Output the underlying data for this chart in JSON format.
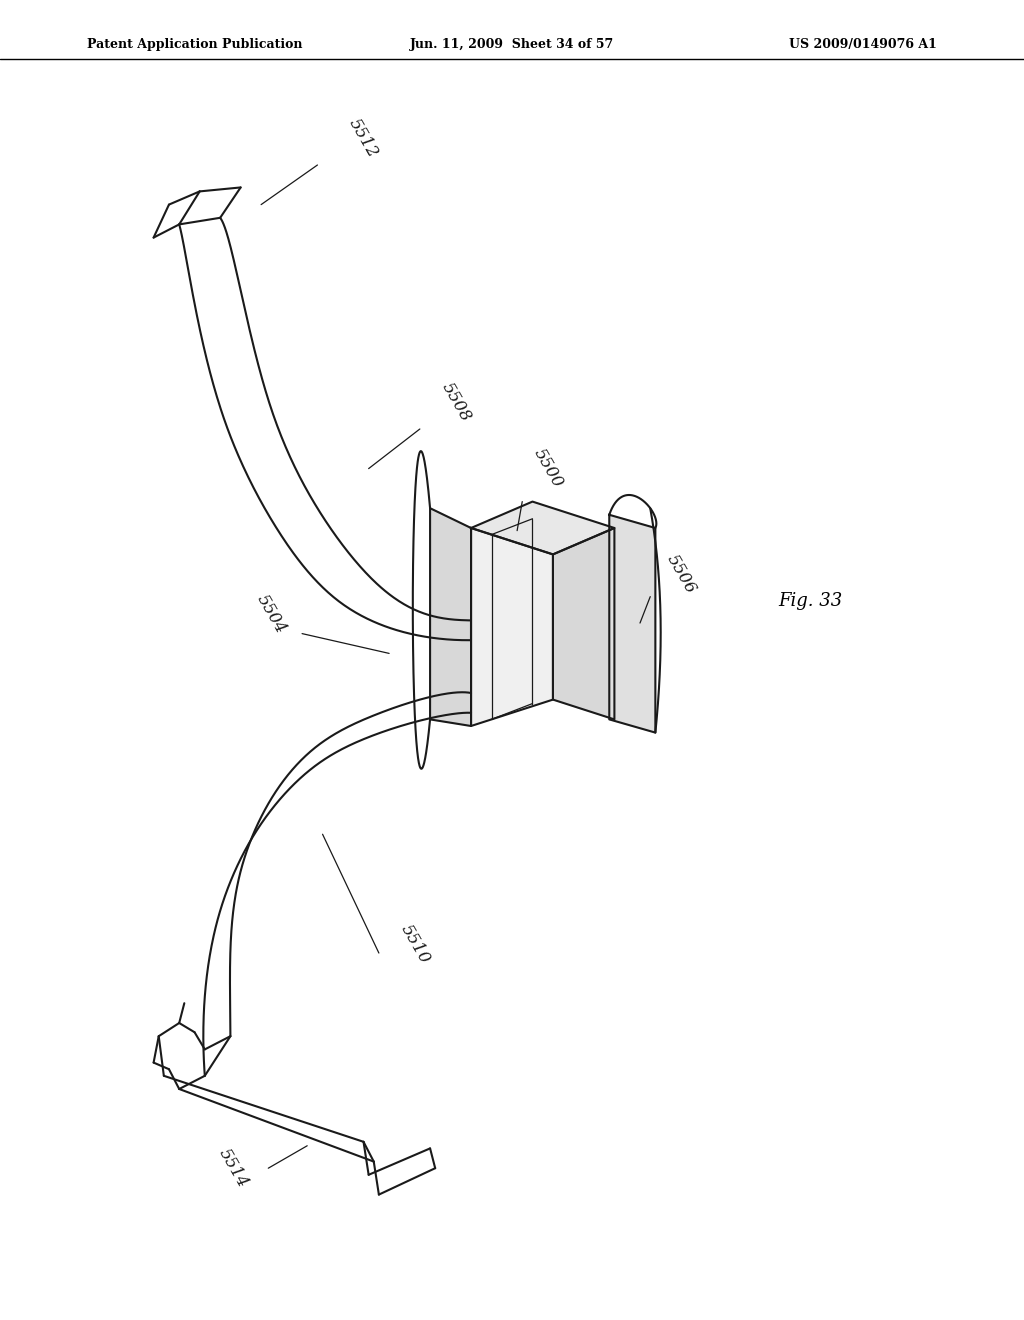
{
  "bg_color": "#ffffff",
  "header_left": "Patent Application Publication",
  "header_center": "Jun. 11, 2009  Sheet 34 of 57",
  "header_right": "US 2009/0149076 A1",
  "fig_label": "Fig. 33",
  "line_color": "#1a1a1a",
  "text_color": "#1a1a1a"
}
